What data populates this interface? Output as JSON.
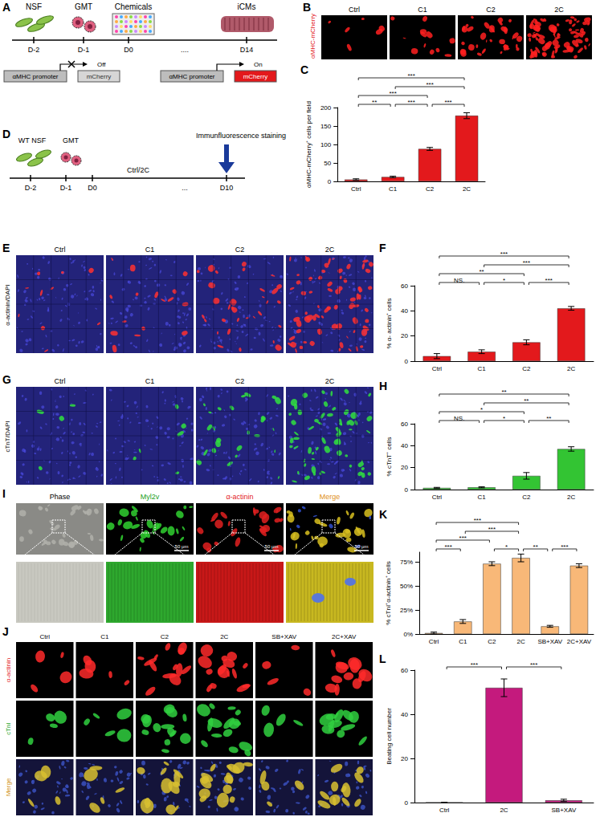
{
  "figure": {
    "A": {
      "label": "A",
      "cells": [
        "NSF",
        "GMT",
        "Chemicals",
        "iCMs"
      ],
      "days": [
        "D-2",
        "D-1",
        "D0",
        "....",
        "D14"
      ],
      "promoter": "αMHC promoter",
      "reporter": "mCherry",
      "states": [
        "Off",
        "On"
      ]
    },
    "B": {
      "label": "B",
      "channel": "αMHC-mCherry",
      "columns": [
        "Ctrl",
        "C1",
        "C2",
        "2C"
      ]
    },
    "D": {
      "label": "D",
      "cells": [
        "WT NSF",
        "GMT"
      ],
      "days": [
        "D-2",
        "D-1",
        "D0",
        "...",
        "D10"
      ],
      "treatment": "Ctrl/2C",
      "endpoint": "Immunfluorescence staining"
    },
    "E": {
      "label": "E",
      "channel": "α-actinin/DAPI",
      "columns": [
        "Ctrl",
        "C1",
        "C2",
        "2C"
      ]
    },
    "G": {
      "label": "G",
      "channel": "cTnT/DAPI",
      "columns": [
        "Ctrl",
        "C1",
        "C2",
        "2C"
      ]
    },
    "I": {
      "label": "I",
      "columns": [
        "Phase",
        "Myl2v",
        "α-actinin",
        "Merge"
      ],
      "scale_bar": "50 μm"
    },
    "J": {
      "label": "J",
      "rows": [
        "α-actinin",
        "cTnI",
        "Merge"
      ],
      "columns": [
        "Ctrl",
        "C1",
        "C2",
        "2C",
        "SB+XAV",
        "2C+XAV"
      ]
    }
  },
  "chart_data": [
    {
      "panel": "C",
      "type": "bar",
      "categories": [
        "Ctrl",
        "C1",
        "C2",
        "2C"
      ],
      "values": [
        5,
        12,
        88,
        178
      ],
      "errors": [
        2,
        2,
        4,
        8
      ],
      "color": "#e3191c",
      "ylabel": "αMHC-mCherry⁺ cells per field",
      "ylim": [
        0,
        200
      ],
      "yticks": [
        0,
        50,
        100,
        150,
        200
      ],
      "grid": false,
      "significance": [
        {
          "from": "Ctrl",
          "to": "C1",
          "label": "**"
        },
        {
          "from": "C1",
          "to": "C2",
          "label": "***"
        },
        {
          "from": "C2",
          "to": "2C",
          "label": "***"
        },
        {
          "from": "Ctrl",
          "to": "C2",
          "label": "***"
        },
        {
          "from": "C1",
          "to": "2C",
          "label": "***"
        },
        {
          "from": "Ctrl",
          "to": "2C",
          "label": "***"
        }
      ]
    },
    {
      "panel": "F",
      "type": "bar",
      "categories": [
        "Ctrl",
        "C1",
        "C2",
        "2C"
      ],
      "values": [
        4,
        7.5,
        15,
        42
      ],
      "errors": [
        2,
        1.5,
        2,
        1.5
      ],
      "color": "#e3191c",
      "ylabel": "% α- actinin⁺ cells",
      "ylim": [
        0,
        60
      ],
      "yticks": [
        0,
        20,
        40,
        60
      ],
      "grid": false,
      "significance": [
        {
          "from": "Ctrl",
          "to": "C1",
          "label": "NS."
        },
        {
          "from": "C1",
          "to": "C2",
          "label": "*"
        },
        {
          "from": "C2",
          "to": "2C",
          "label": "***"
        },
        {
          "from": "Ctrl",
          "to": "C2",
          "label": "**"
        },
        {
          "from": "C1",
          "to": "2C",
          "label": "***"
        },
        {
          "from": "Ctrl",
          "to": "2C",
          "label": "***"
        }
      ]
    },
    {
      "panel": "H",
      "type": "bar",
      "categories": [
        "Ctrl",
        "C1",
        "C2",
        "2C"
      ],
      "values": [
        1.5,
        2,
        12.5,
        37
      ],
      "errors": [
        0.5,
        0.5,
        3,
        2
      ],
      "color": "#33c433",
      "ylabel": "% cTnT⁺ cells",
      "ylim": [
        0,
        60
      ],
      "yticks": [
        0,
        20,
        40,
        60
      ],
      "grid": false,
      "significance": [
        {
          "from": "Ctrl",
          "to": "C1",
          "label": "NS."
        },
        {
          "from": "C1",
          "to": "C2",
          "label": "*"
        },
        {
          "from": "C2",
          "to": "2C",
          "label": "**"
        },
        {
          "from": "Ctrl",
          "to": "C2",
          "label": "*"
        },
        {
          "from": "C1",
          "to": "2C",
          "label": "**"
        },
        {
          "from": "Ctrl",
          "to": "2C",
          "label": "**"
        }
      ]
    },
    {
      "panel": "K",
      "type": "bar",
      "categories": [
        "Ctrl",
        "C1",
        "C2",
        "2C",
        "SB+XAV",
        "2C+XAV"
      ],
      "values": [
        1,
        13,
        73,
        79,
        8,
        71
      ],
      "errors": [
        1,
        2,
        2,
        4,
        1,
        2
      ],
      "color": "#f8b878",
      "ylabel": "% cTnI⁺α-actinin⁺ cells",
      "ylim": [
        0,
        85
      ],
      "yticks": [
        {
          "value": 0,
          "label": "0%"
        },
        {
          "value": 25,
          "label": "25%"
        },
        {
          "value": 50,
          "label": "50%"
        },
        {
          "value": 75,
          "label": "75%"
        }
      ],
      "grid": false,
      "significance": [
        {
          "from": "Ctrl",
          "to": "C1",
          "label": "***"
        },
        {
          "from": "C2",
          "to": "2C",
          "label": "*"
        },
        {
          "from": "2C",
          "to": "SB+XAV",
          "label": "**"
        },
        {
          "from": "SB+XAV",
          "to": "2C+XAV",
          "label": "***"
        },
        {
          "from": "Ctrl",
          "to": "C2",
          "label": "***"
        },
        {
          "from": "C1",
          "to": "2C",
          "label": "***"
        },
        {
          "from": "Ctrl",
          "to": "2C",
          "label": "***"
        }
      ]
    },
    {
      "panel": "L",
      "type": "bar",
      "categories": [
        "Ctrl",
        "2C",
        "SB+XAV"
      ],
      "values": [
        0,
        52,
        1
      ],
      "errors": [
        0,
        4,
        0.5
      ],
      "color": "#c41a7d",
      "ylabel": "Beating cell number",
      "ylim": [
        0,
        60
      ],
      "yticks": [
        0,
        20,
        40,
        60
      ],
      "grid": false,
      "significance": [
        {
          "from": "Ctrl",
          "to": "2C",
          "label": "***"
        },
        {
          "from": "2C",
          "to": "SB+XAV",
          "label": "***"
        }
      ]
    }
  ]
}
